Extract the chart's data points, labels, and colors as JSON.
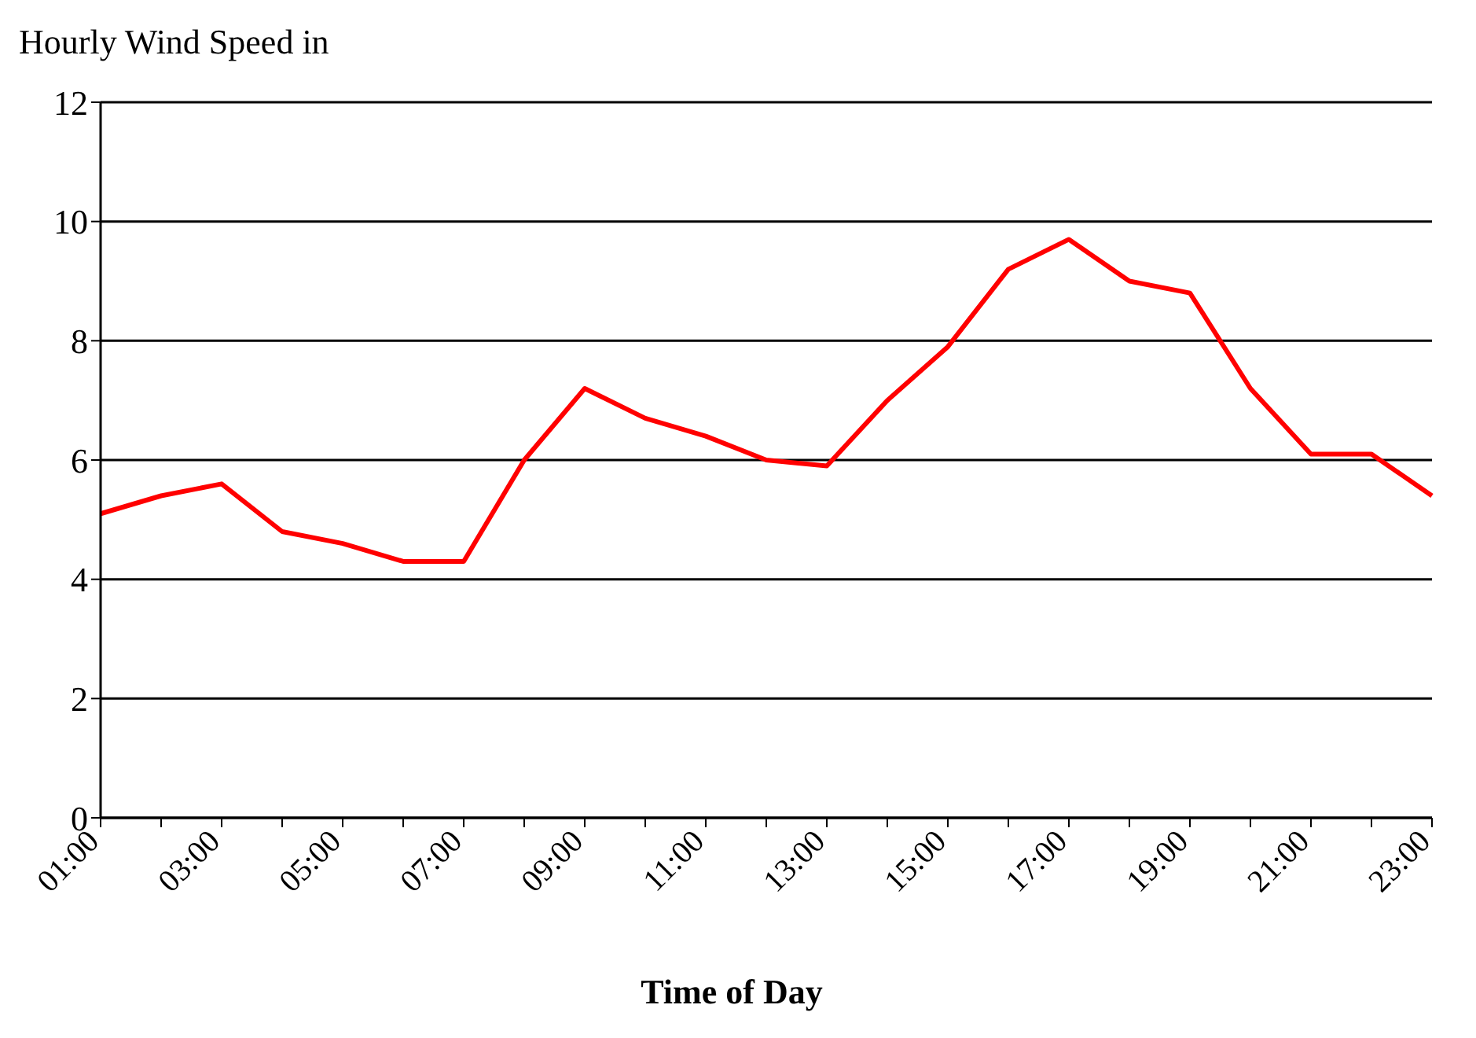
{
  "chart_data": {
    "type": "line",
    "ylabel": "Hourly Wind Speed in",
    "xlabel": "Time of Day",
    "categories": [
      "01:00",
      null,
      "03:00",
      null,
      "05:00",
      null,
      "07:00",
      null,
      "09:00",
      null,
      "11:00",
      null,
      "13:00",
      null,
      "15:00",
      null,
      "17:00",
      null,
      "19:00",
      null,
      "21:00",
      null,
      "23:00"
    ],
    "series": [
      {
        "color": "#ff0000",
        "values": [
          5.1,
          5.4,
          5.6,
          4.8,
          4.6,
          4.3,
          4.3,
          6.0,
          7.2,
          6.7,
          6.4,
          6.0,
          5.9,
          7.0,
          7.9,
          9.2,
          9.7,
          9.0,
          8.8,
          7.2,
          6.1,
          6.1,
          5.4
        ]
      }
    ],
    "ylim": [
      0,
      12
    ],
    "yticks": [
      0,
      2,
      4,
      6,
      8,
      10,
      12
    ],
    "grid": "y",
    "marker": "none",
    "line_style": "solid"
  }
}
